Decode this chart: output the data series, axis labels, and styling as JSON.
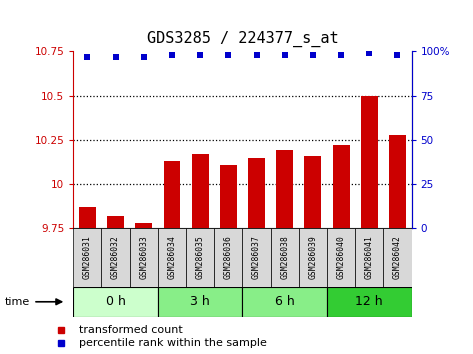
{
  "title": "GDS3285 / 224377_s_at",
  "samples": [
    "GSM286031",
    "GSM286032",
    "GSM286033",
    "GSM286034",
    "GSM286035",
    "GSM286036",
    "GSM286037",
    "GSM286038",
    "GSM286039",
    "GSM286040",
    "GSM286041",
    "GSM286042"
  ],
  "bar_values": [
    9.87,
    9.82,
    9.78,
    10.13,
    10.17,
    10.11,
    10.15,
    10.19,
    10.16,
    10.22,
    10.5,
    10.28
  ],
  "percentile_values": [
    97,
    97,
    97,
    98,
    98,
    98,
    98,
    98,
    98,
    98,
    99,
    98
  ],
  "bar_bottom": 9.75,
  "ylim_left": [
    9.75,
    10.75
  ],
  "ylim_right": [
    0,
    100
  ],
  "yticks_left": [
    9.75,
    10.0,
    10.25,
    10.5,
    10.75
  ],
  "ytick_labels_left": [
    "9.75",
    "10",
    "10.25",
    "10.5",
    "10.75"
  ],
  "yticks_right": [
    0,
    25,
    50,
    75,
    100
  ],
  "ytick_labels_right": [
    "0",
    "25",
    "50",
    "75",
    "100%"
  ],
  "bar_color": "#cc0000",
  "dot_color": "#0000cc",
  "groups": [
    {
      "label": "0 h",
      "start": 0,
      "end": 3,
      "color": "#ccffcc"
    },
    {
      "label": "3 h",
      "start": 3,
      "end": 6,
      "color": "#88ee88"
    },
    {
      "label": "6 h",
      "start": 6,
      "end": 9,
      "color": "#88ee88"
    },
    {
      "label": "12 h",
      "start": 9,
      "end": 12,
      "color": "#33cc33"
    }
  ],
  "time_label": "time",
  "legend_bar_label": "transformed count",
  "legend_dot_label": "percentile rank within the sample",
  "title_fontsize": 11,
  "tick_color_left": "#cc0000",
  "tick_color_right": "#0000cc",
  "dotted_gridlines": [
    10.0,
    10.25,
    10.5
  ],
  "bg_color": "#ffffff"
}
